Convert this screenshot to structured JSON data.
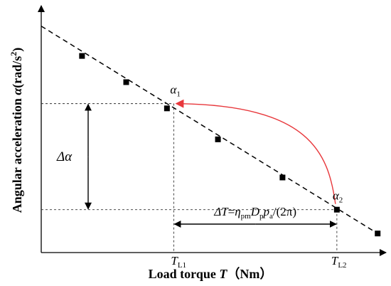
{
  "chart_data": {
    "type": "scatter",
    "title": "",
    "xlabel": {
      "prefix": "Load torque ",
      "var": "T",
      "suffix": "（Nm）"
    },
    "ylabel": {
      "prefix": "Angular acceleration ",
      "var": "α",
      "suffix": "(rad/s",
      "exp": "2",
      "close": ")"
    },
    "x_ticks": [
      {
        "label": "T",
        "sub": "L1",
        "x": 0.39
      },
      {
        "label": "T",
        "sub": "L2",
        "x": 0.87
      }
    ],
    "xlim": [
      0,
      1
    ],
    "ylim": [
      0,
      1
    ],
    "grid": false,
    "legend": "none",
    "series": [
      {
        "marker": "square",
        "points": [
          {
            "x": 0.12,
            "y": 0.825
          },
          {
            "x": 0.25,
            "y": 0.715
          },
          {
            "x": 0.37,
            "y": 0.605
          },
          {
            "x": 0.52,
            "y": 0.475
          },
          {
            "x": 0.71,
            "y": 0.315
          },
          {
            "x": 0.87,
            "y": 0.18
          },
          {
            "x": 0.99,
            "y": 0.08
          }
        ]
      }
    ],
    "fit_line": {
      "style": "dashed",
      "from": {
        "x": 0.0,
        "y": 0.95
      },
      "to": {
        "x": 0.99,
        "y": 0.08
      }
    },
    "points_of_interest": {
      "alpha1": {
        "label": "α",
        "sub": "1",
        "x": 0.39,
        "y": 0.625
      },
      "alpha2": {
        "label": "α",
        "sub": "2",
        "x": 0.87,
        "y": 0.18
      }
    },
    "annotations": {
      "delta_alpha": "Δα",
      "delta_T": {
        "lhs": "ΔT",
        "eq": "=",
        "eta": "η",
        "eta_sub": "pm",
        "D": "D",
        "D_sub": "p",
        "p": "p",
        "p_sub": "a",
        "rhs": "/(2π)"
      }
    },
    "colors": {
      "curve": "#e8383c",
      "axis": "#000000"
    }
  }
}
